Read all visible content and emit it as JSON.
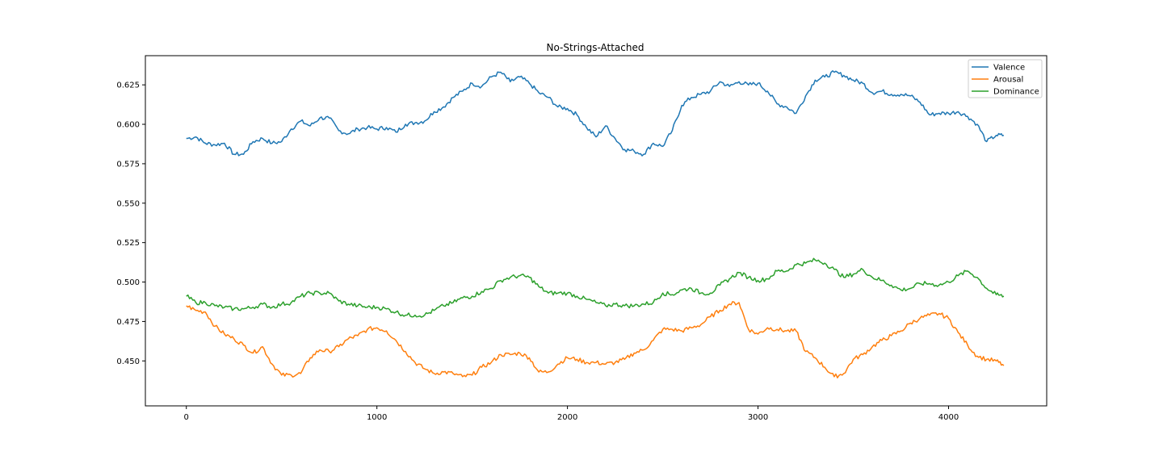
{
  "chart_data": {
    "type": "line",
    "title": "No-Strings-Attached",
    "xlabel": "",
    "ylabel": "",
    "xlim": [
      -215,
      4515
    ],
    "ylim": [
      0.4215,
      0.6435
    ],
    "xticks": [
      0,
      1000,
      2000,
      3000,
      4000
    ],
    "yticks": [
      0.45,
      0.475,
      0.5,
      0.525,
      0.55,
      0.575,
      0.6,
      0.625
    ],
    "ytick_labels": [
      "0.450",
      "0.475",
      "0.500",
      "0.525",
      "0.550",
      "0.575",
      "0.600",
      "0.625"
    ],
    "grid": false,
    "legend_position": "top-right",
    "series": [
      {
        "name": "Valence",
        "color": "#1f77b4",
        "x": [
          0,
          50,
          100,
          150,
          200,
          250,
          300,
          350,
          400,
          450,
          500,
          550,
          600,
          650,
          700,
          750,
          800,
          850,
          900,
          950,
          1000,
          1050,
          1100,
          1150,
          1200,
          1250,
          1300,
          1350,
          1400,
          1450,
          1500,
          1550,
          1600,
          1650,
          1700,
          1750,
          1800,
          1850,
          1900,
          1950,
          2000,
          2050,
          2100,
          2150,
          2200,
          2250,
          2300,
          2350,
          2400,
          2450,
          2500,
          2550,
          2600,
          2650,
          2700,
          2750,
          2800,
          2850,
          2900,
          2950,
          3000,
          3050,
          3100,
          3150,
          3200,
          3250,
          3300,
          3350,
          3400,
          3450,
          3500,
          3550,
          3600,
          3650,
          3700,
          3750,
          3800,
          3850,
          3900,
          3950,
          4000,
          4050,
          4100,
          4150,
          4200,
          4250,
          4290
        ],
        "values": [
          0.591,
          0.592,
          0.588,
          0.587,
          0.588,
          0.581,
          0.581,
          0.589,
          0.591,
          0.588,
          0.589,
          0.597,
          0.602,
          0.599,
          0.604,
          0.604,
          0.596,
          0.594,
          0.597,
          0.598,
          0.597,
          0.598,
          0.595,
          0.6,
          0.601,
          0.602,
          0.608,
          0.611,
          0.617,
          0.621,
          0.626,
          0.624,
          0.63,
          0.633,
          0.627,
          0.63,
          0.626,
          0.62,
          0.617,
          0.611,
          0.61,
          0.606,
          0.598,
          0.592,
          0.599,
          0.591,
          0.584,
          0.583,
          0.581,
          0.588,
          0.586,
          0.596,
          0.612,
          0.617,
          0.619,
          0.621,
          0.627,
          0.624,
          0.627,
          0.625,
          0.626,
          0.621,
          0.613,
          0.611,
          0.607,
          0.618,
          0.628,
          0.63,
          0.633,
          0.631,
          0.628,
          0.626,
          0.62,
          0.621,
          0.619,
          0.619,
          0.618,
          0.614,
          0.606,
          0.607,
          0.607,
          0.608,
          0.605,
          0.6,
          0.589,
          0.593,
          0.593
        ]
      },
      {
        "name": "Arousal",
        "color": "#ff7f0e",
        "x": [
          0,
          50,
          100,
          150,
          200,
          250,
          300,
          350,
          400,
          450,
          500,
          550,
          600,
          650,
          700,
          750,
          800,
          850,
          900,
          950,
          1000,
          1050,
          1100,
          1150,
          1200,
          1250,
          1300,
          1350,
          1400,
          1450,
          1500,
          1550,
          1600,
          1650,
          1700,
          1750,
          1800,
          1850,
          1900,
          1950,
          2000,
          2050,
          2100,
          2150,
          2200,
          2250,
          2300,
          2350,
          2400,
          2450,
          2500,
          2550,
          2600,
          2650,
          2700,
          2750,
          2800,
          2850,
          2900,
          2950,
          3000,
          3050,
          3100,
          3150,
          3200,
          3250,
          3300,
          3350,
          3400,
          3450,
          3500,
          3550,
          3600,
          3650,
          3700,
          3750,
          3800,
          3850,
          3900,
          3950,
          4000,
          4050,
          4100,
          4150,
          4200,
          4250,
          4290
        ],
        "values": [
          0.485,
          0.482,
          0.481,
          0.472,
          0.467,
          0.464,
          0.46,
          0.455,
          0.459,
          0.448,
          0.441,
          0.441,
          0.442,
          0.452,
          0.457,
          0.456,
          0.459,
          0.464,
          0.466,
          0.47,
          0.471,
          0.469,
          0.463,
          0.456,
          0.449,
          0.445,
          0.442,
          0.443,
          0.442,
          0.44,
          0.441,
          0.446,
          0.449,
          0.454,
          0.454,
          0.455,
          0.452,
          0.443,
          0.443,
          0.448,
          0.452,
          0.451,
          0.449,
          0.449,
          0.448,
          0.449,
          0.451,
          0.455,
          0.457,
          0.463,
          0.47,
          0.47,
          0.469,
          0.471,
          0.473,
          0.478,
          0.482,
          0.486,
          0.487,
          0.47,
          0.467,
          0.471,
          0.47,
          0.469,
          0.469,
          0.456,
          0.452,
          0.446,
          0.44,
          0.442,
          0.451,
          0.454,
          0.459,
          0.463,
          0.466,
          0.469,
          0.474,
          0.477,
          0.479,
          0.48,
          0.477,
          0.468,
          0.46,
          0.453,
          0.451,
          0.45,
          0.447
        ]
      },
      {
        "name": "Dominance",
        "color": "#2ca02c",
        "x": [
          0,
          50,
          100,
          150,
          200,
          250,
          300,
          350,
          400,
          450,
          500,
          550,
          600,
          650,
          700,
          750,
          800,
          850,
          900,
          950,
          1000,
          1050,
          1100,
          1150,
          1200,
          1250,
          1300,
          1350,
          1400,
          1450,
          1500,
          1550,
          1600,
          1650,
          1700,
          1750,
          1800,
          1850,
          1900,
          1950,
          2000,
          2050,
          2100,
          2150,
          2200,
          2250,
          2300,
          2350,
          2400,
          2450,
          2500,
          2550,
          2600,
          2650,
          2700,
          2750,
          2800,
          2850,
          2900,
          2950,
          3000,
          3050,
          3100,
          3150,
          3200,
          3250,
          3300,
          3350,
          3400,
          3450,
          3500,
          3550,
          3600,
          3650,
          3700,
          3750,
          3800,
          3850,
          3900,
          3950,
          4000,
          4050,
          4100,
          4150,
          4200,
          4250,
          4290
        ],
        "values": [
          0.491,
          0.487,
          0.487,
          0.485,
          0.484,
          0.483,
          0.483,
          0.484,
          0.486,
          0.484,
          0.486,
          0.487,
          0.491,
          0.493,
          0.493,
          0.493,
          0.488,
          0.486,
          0.485,
          0.484,
          0.484,
          0.483,
          0.481,
          0.479,
          0.479,
          0.479,
          0.482,
          0.485,
          0.487,
          0.49,
          0.491,
          0.494,
          0.496,
          0.501,
          0.503,
          0.504,
          0.503,
          0.497,
          0.493,
          0.493,
          0.493,
          0.491,
          0.489,
          0.487,
          0.485,
          0.486,
          0.485,
          0.485,
          0.486,
          0.487,
          0.493,
          0.492,
          0.495,
          0.496,
          0.493,
          0.493,
          0.498,
          0.502,
          0.506,
          0.503,
          0.501,
          0.502,
          0.507,
          0.507,
          0.511,
          0.512,
          0.514,
          0.512,
          0.508,
          0.503,
          0.505,
          0.508,
          0.503,
          0.501,
          0.498,
          0.495,
          0.496,
          0.499,
          0.499,
          0.498,
          0.5,
          0.504,
          0.507,
          0.503,
          0.496,
          0.492,
          0.491
        ]
      }
    ]
  }
}
